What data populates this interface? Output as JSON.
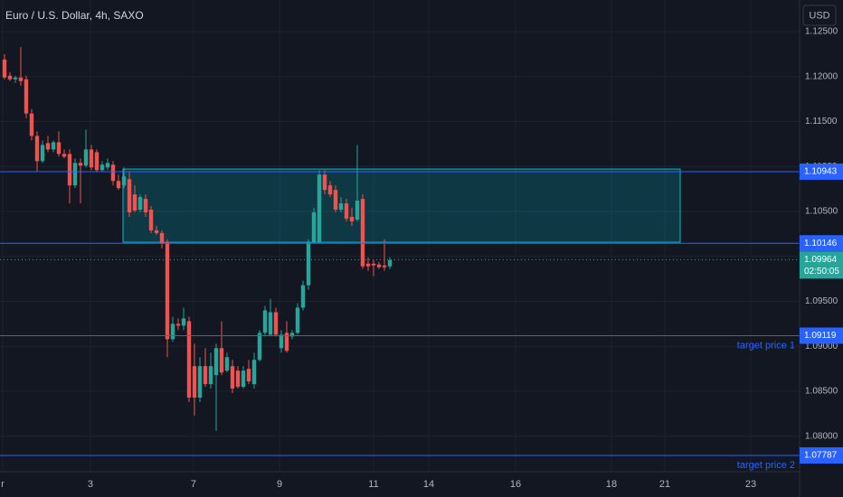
{
  "chart_data": {
    "type": "candlestick",
    "title": "Euro / U.S. Dollar, 4h, SAXO",
    "currency": "USD",
    "up_color": "#26a69a",
    "down_color": "#ef5350",
    "open": [
      1.1219,
      1.1201,
      1.1197,
      1.1199,
      1.1197,
      1.1159,
      1.1134,
      1.1106,
      1.1126,
      1.1119,
      1.1127,
      1.1114,
      1.1114,
      1.1079,
      1.1104,
      1.1101,
      1.1119,
      1.1116,
      1.1096,
      1.1099,
      1.1102,
      1.1084,
      1.1079,
      1.1086,
      1.1069,
      1.1052,
      1.1064,
      1.1052,
      1.1029,
      1.1026,
      1.1016,
      1.0908,
      1.0925,
      1.0923,
      1.0928,
      1.0878,
      1.0843,
      1.0878,
      1.0858,
      1.0868,
      1.0898,
      1.0873,
      1.0878,
      1.0873,
      1.0855,
      1.0875,
      1.0858,
      1.0885,
      1.0915,
      1.0913,
      1.0938,
      1.0898,
      1.0915,
      1.0911,
      1.0915,
      1.0943,
      1.0968,
      1.1016,
      1.1016,
      1.1091,
      1.1079,
      1.1074,
      1.1052,
      1.1059,
      1.1044,
      1.1041,
      1.1064,
      1.0992,
      1.0992,
      1.0991,
      1.099,
      1.0989
    ],
    "high": [
      1.1225,
      1.1205,
      1.1201,
      1.1233,
      1.1201,
      1.1164,
      1.1139,
      1.1129,
      1.1134,
      1.1129,
      1.1139,
      1.1119,
      1.1119,
      1.1109,
      1.1109,
      1.1141,
      1.1124,
      1.1119,
      1.1106,
      1.1109,
      1.1106,
      1.1091,
      1.1099,
      1.1094,
      1.1079,
      1.1069,
      1.1069,
      1.1056,
      1.1034,
      1.1029,
      1.1019,
      1.0933,
      1.0931,
      1.0943,
      1.0933,
      1.0903,
      1.0888,
      1.0898,
      1.0893,
      1.0903,
      1.0928,
      1.0893,
      1.0885,
      1.0878,
      1.0878,
      1.0885,
      1.0893,
      1.0918,
      1.0945,
      1.0953,
      1.0943,
      1.0918,
      1.0928,
      1.0918,
      1.0948,
      1.0973,
      1.1019,
      1.1054,
      1.1096,
      1.1096,
      1.1084,
      1.1079,
      1.1066,
      1.1064,
      1.1054,
      1.1124,
      1.1069,
      1.0999,
      1.0996,
      1.0994,
      1.1019,
      1.0999
    ],
    "low": [
      1.1197,
      1.1195,
      1.1193,
      1.119,
      1.1154,
      1.1129,
      1.1094,
      1.1104,
      1.1116,
      1.1116,
      1.1111,
      1.1109,
      1.1059,
      1.1076,
      1.1059,
      1.1099,
      1.1096,
      1.1094,
      1.1094,
      1.1096,
      1.1079,
      1.1074,
      1.1076,
      1.1044,
      1.1049,
      1.1049,
      1.1044,
      1.1026,
      1.1024,
      1.1009,
      1.0888,
      1.0905,
      1.0918,
      1.0918,
      1.0838,
      1.0823,
      1.0838,
      1.0855,
      1.0853,
      1.0806,
      1.0868,
      1.0871,
      1.0848,
      1.0853,
      1.0853,
      1.0858,
      1.0853,
      1.0883,
      1.0911,
      1.0911,
      1.0911,
      1.0893,
      1.0893,
      1.0908,
      1.0913,
      1.094,
      1.0963,
      1.1014,
      1.1014,
      1.1069,
      1.1066,
      1.1049,
      1.1049,
      1.1039,
      1.1034,
      1.1039,
      1.0986,
      1.0984,
      1.0978,
      1.0986,
      1.0984,
      1.0986
    ],
    "close": [
      1.1199,
      1.1197,
      1.1199,
      1.1195,
      1.1159,
      1.1134,
      1.1106,
      1.1124,
      1.1119,
      1.1127,
      1.1114,
      1.1111,
      1.1079,
      1.1104,
      1.1101,
      1.1119,
      1.1099,
      1.1096,
      1.1102,
      1.1104,
      1.1084,
      1.1076,
      1.1089,
      1.1049,
      1.1051,
      1.1066,
      1.1049,
      1.1029,
      1.1026,
      1.1014,
      1.0908,
      1.0925,
      1.0923,
      1.0931,
      1.0843,
      1.0843,
      1.0878,
      1.0858,
      1.0878,
      1.0898,
      1.0871,
      1.0888,
      1.0853,
      1.0855,
      1.0873,
      1.0861,
      1.0885,
      1.0915,
      1.094,
      1.0938,
      1.0913,
      1.0913,
      1.0895,
      1.0915,
      1.0943,
      1.0968,
      1.1016,
      1.1049,
      1.1091,
      1.1074,
      1.1069,
      1.1052,
      1.1059,
      1.1042,
      1.1039,
      1.1062,
      1.0989,
      1.0989,
      1.099,
      1.0988,
      1.0988,
      1.0996
    ],
    "xlim": [
      -0.833,
      146.5
    ],
    "xticks": [
      {
        "value": -0.33,
        "label": "r"
      },
      {
        "value": 15.83,
        "label": "3"
      },
      {
        "value": 34.83,
        "label": "7"
      },
      {
        "value": 50.67,
        "label": "9"
      },
      {
        "value": 68,
        "label": "11"
      },
      {
        "value": 78.17,
        "label": "14"
      },
      {
        "value": 94.17,
        "label": "16"
      },
      {
        "value": 111.83,
        "label": "18"
      },
      {
        "value": 121.67,
        "label": "21"
      },
      {
        "value": 137.5,
        "label": "23"
      }
    ],
    "ylim": [
      1.07606,
      1.12852
    ],
    "yticks": [
      {
        "value": 1.125,
        "label": "1.12500"
      },
      {
        "value": 1.12,
        "label": "1.12000"
      },
      {
        "value": 1.115,
        "label": "1.11500"
      },
      {
        "value": 1.11,
        "label": "1.11000"
      },
      {
        "value": 1.105,
        "label": "1.10500"
      },
      {
        "value": 1.1,
        "label": "1.10000"
      },
      {
        "value": 1.095,
        "label": "1.09500"
      },
      {
        "value": 1.09,
        "label": "1.09000"
      },
      {
        "value": 1.085,
        "label": "1.08500"
      },
      {
        "value": 1.08,
        "label": "1.08000"
      }
    ],
    "grid": true,
    "zone": {
      "x": [
        21.83,
        124.5
      ],
      "y": [
        1.10158,
        1.10972
      ],
      "color": "#00bcd4"
    },
    "levels": [
      {
        "value": 1.10943,
        "color": "#2962ff"
      },
      {
        "value": 1.10146,
        "color": "#2962ff"
      },
      {
        "value": 1.09119,
        "color": "#2962ff",
        "name": "target price 1"
      },
      {
        "value": 1.07787,
        "color": "#2962ff",
        "name": "target price 2"
      }
    ],
    "current_price": 1.09964,
    "countdown": "02:50:05"
  }
}
